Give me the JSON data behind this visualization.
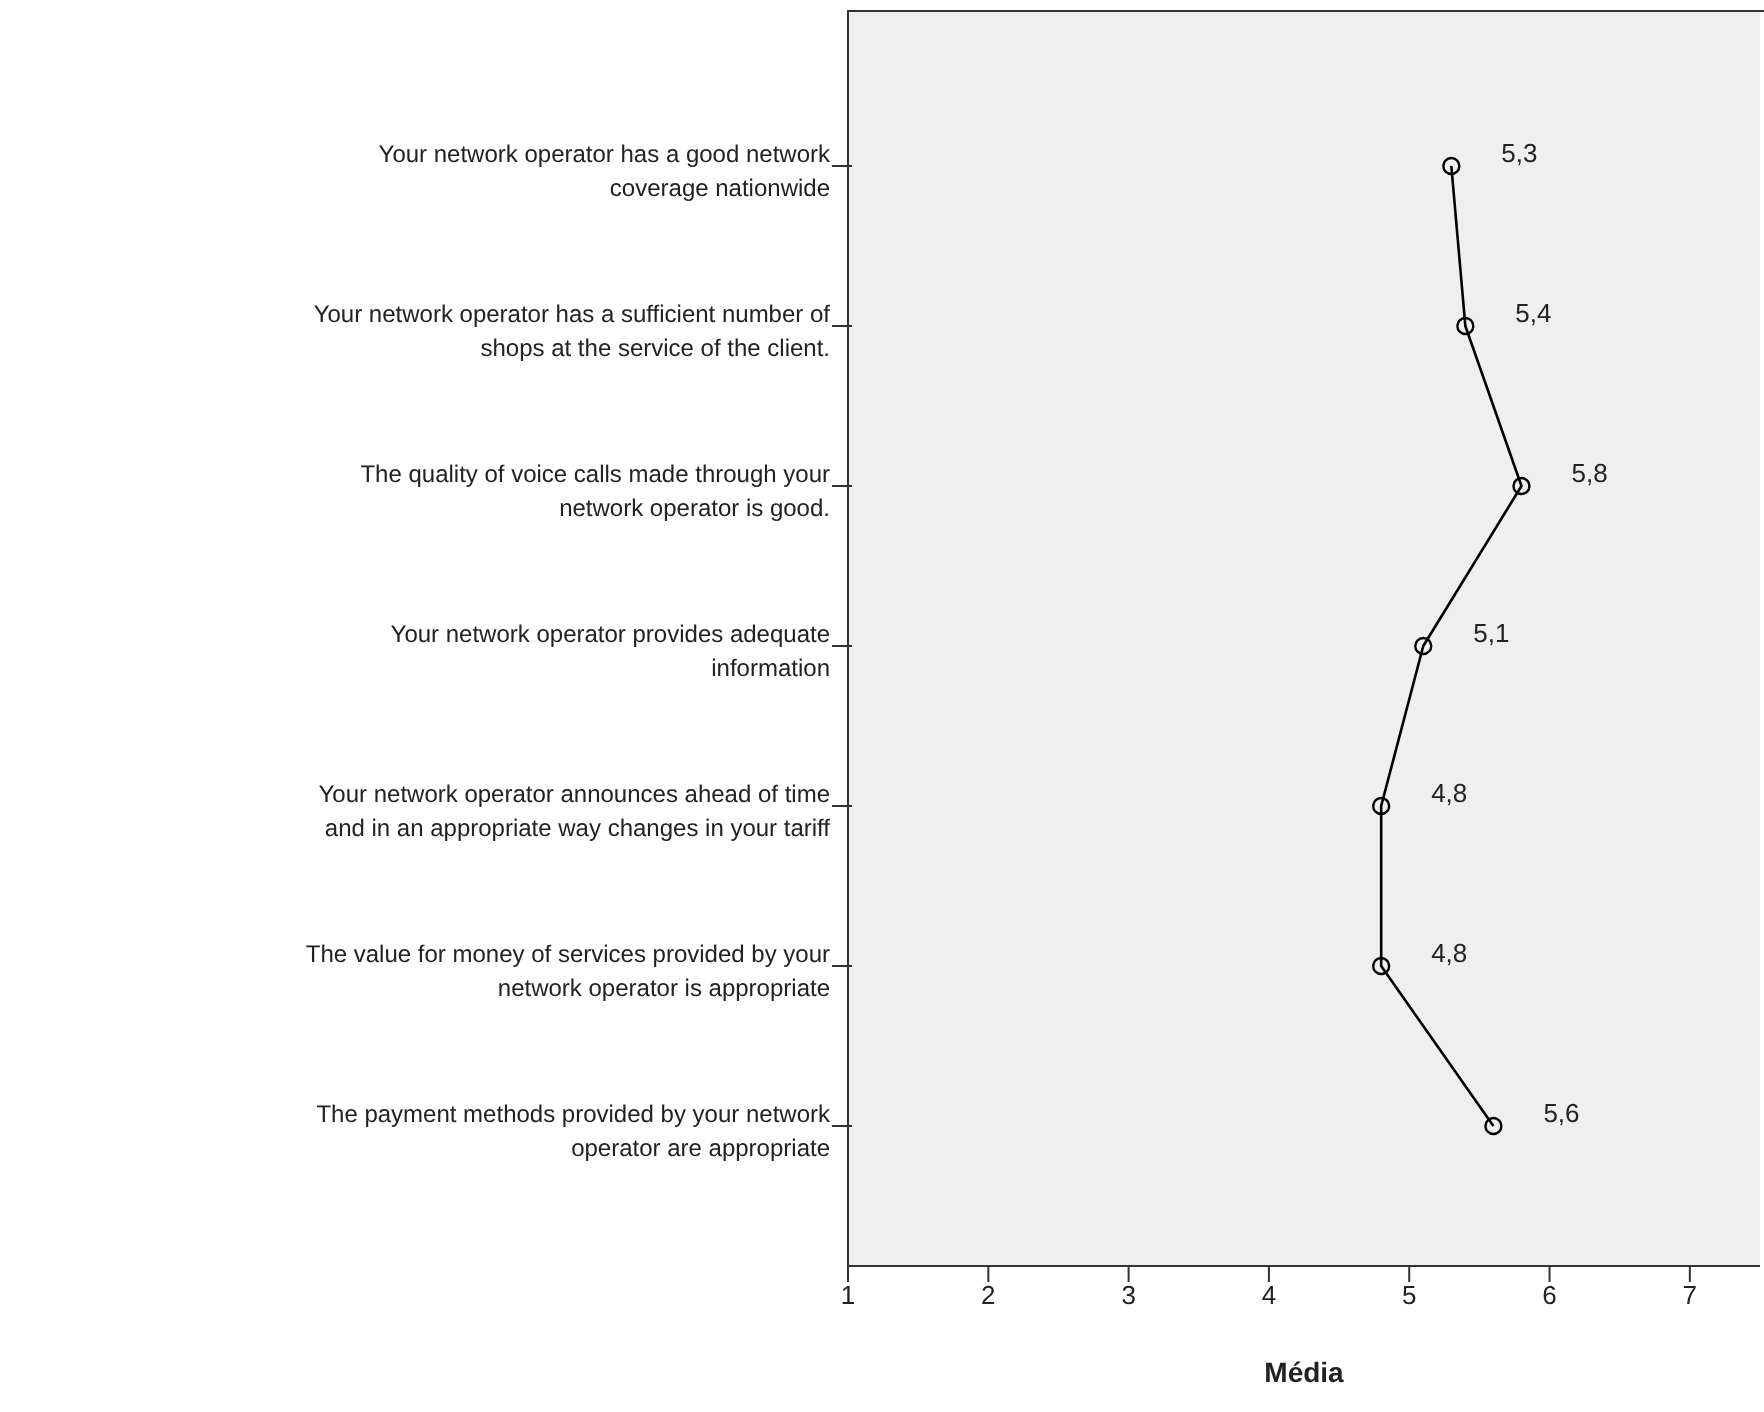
{
  "chart_data": {
    "type": "line",
    "orientation": "horizontal",
    "xlabel": "Média",
    "categories": [
      "Your network operator has a good network\ncoverage nationwide",
      "Your network operator has a sufficient number of\nshops at the service of the client.",
      "The quality of voice calls made through your\nnetwork operator is good.",
      "Your network operator provides adequate\ninformation",
      "Your network operator announces ahead of time\nand in an appropriate way changes in your tariff",
      "The value for money of services provided by your\nnetwork operator is appropriate",
      "The payment methods provided by your network\noperator are appropriate"
    ],
    "values": [
      5.3,
      5.4,
      5.8,
      5.1,
      4.8,
      4.8,
      5.6
    ],
    "value_labels": [
      "5,3",
      "5,4",
      "5,8",
      "5,1",
      "4,8",
      "4,8",
      "5,6"
    ],
    "color": "#000000",
    "marker": "circle",
    "line_style": "solid",
    "xlim": [
      1,
      7.5
    ],
    "xticks": [
      1,
      2,
      3,
      4,
      5,
      6,
      7
    ],
    "grid": false
  }
}
